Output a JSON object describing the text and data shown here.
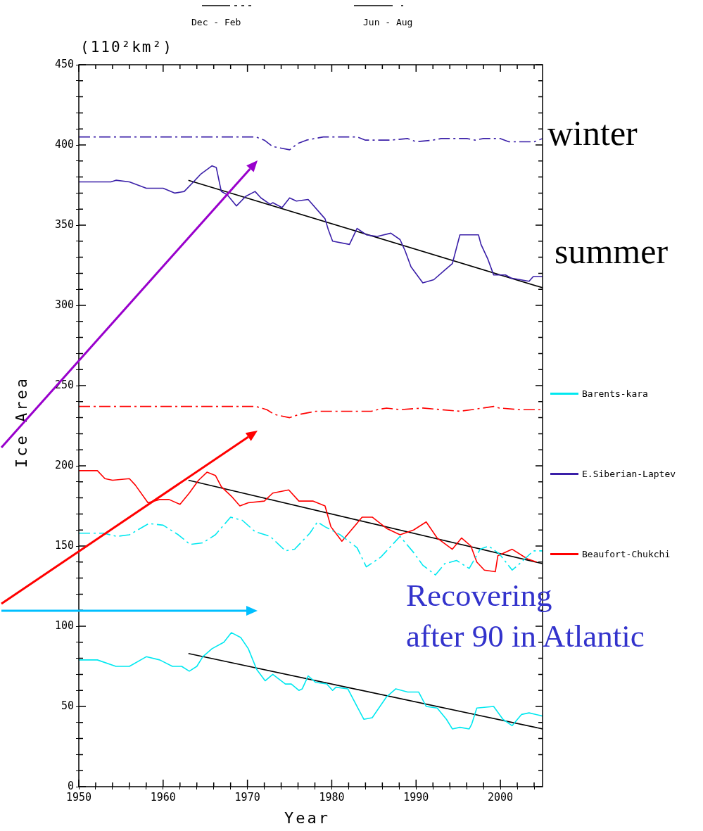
{
  "chart_data": {
    "type": "line",
    "xlabel": "Year",
    "ylabel": "Ice Area",
    "xlim": [
      1950,
      2005
    ],
    "xticks": [
      1950,
      {
        "value": 1952,
        "label": null
      },
      {
        "value": 1954,
        "label": null
      },
      {
        "value": 1956,
        "label": null
      },
      {
        "value": 1958,
        "label": null
      },
      1960,
      {
        "value": 1962,
        "label": null
      },
      {
        "value": 1964,
        "label": null
      },
      {
        "value": 1966,
        "label": null
      },
      {
        "value": 1968,
        "label": null
      },
      1970,
      {
        "value": 1972,
        "label": null
      },
      {
        "value": 1974,
        "label": null
      },
      {
        "value": 1976,
        "label": null
      },
      {
        "value": 1978,
        "label": null
      },
      1980,
      {
        "value": 1982,
        "label": null
      },
      {
        "value": 1984,
        "label": null
      },
      {
        "value": 1986,
        "label": null
      },
      {
        "value": 1988,
        "label": null
      },
      1990,
      {
        "value": 1992,
        "label": null
      },
      {
        "value": 1994,
        "label": null
      },
      {
        "value": 1996,
        "label": null
      },
      {
        "value": 1998,
        "label": null
      },
      2000,
      {
        "value": 2002,
        "label": null
      },
      {
        "value": 2004,
        "label": null
      }
    ],
    "ylim": [
      0,
      450
    ],
    "yticks": [
      0,
      {
        "value": 10,
        "label": null
      },
      {
        "value": 20,
        "label": null
      },
      {
        "value": 30,
        "label": null
      },
      {
        "value": 40,
        "label": null
      },
      50,
      {
        "value": 60,
        "label": null
      },
      {
        "value": 70,
        "label": null
      },
      {
        "value": 80,
        "label": null
      },
      {
        "value": 90,
        "label": null
      },
      100,
      {
        "value": 110,
        "label": null
      },
      {
        "value": 120,
        "label": null
      },
      {
        "value": 130,
        "label": null
      },
      {
        "value": 140,
        "label": null
      },
      150,
      {
        "value": 160,
        "label": null
      },
      {
        "value": 170,
        "label": null
      },
      {
        "value": 180,
        "label": null
      },
      {
        "value": 190,
        "label": null
      },
      200,
      {
        "value": 210,
        "label": null
      },
      {
        "value": 220,
        "label": null
      },
      {
        "value": 230,
        "label": null
      },
      {
        "value": 240,
        "label": null
      },
      250,
      {
        "value": 260,
        "label": null
      },
      {
        "value": 270,
        "label": null
      },
      {
        "value": 280,
        "label": null
      },
      {
        "value": 290,
        "label": null
      },
      300,
      {
        "value": 310,
        "label": null
      },
      {
        "value": 320,
        "label": null
      },
      {
        "value": 330,
        "label": null
      },
      {
        "value": 340,
        "label": null
      },
      350,
      {
        "value": 360,
        "label": null
      },
      {
        "value": 370,
        "label": null
      },
      {
        "value": 380,
        "label": null
      },
      {
        "value": 390,
        "label": null
      },
      400,
      {
        "value": 410,
        "label": null
      },
      {
        "value": 420,
        "label": null
      },
      {
        "value": 430,
        "label": null
      },
      {
        "value": 440,
        "label": null
      },
      450
    ],
    "grid": false,
    "legend": "right",
    "marker": "none",
    "series": [
      {
        "type": "line",
        "line_style": "dashed",
        "color": "#3a1fa8",
        "x": [
          1950,
          1971,
          1972,
          1973,
          1975,
          1976,
          1977,
          1979,
          1983,
          1984,
          1987,
          1989,
          1990,
          1992,
          1993,
          1996,
          1997,
          1998,
          2000,
          2001,
          2004,
          2005
        ],
        "values": [
          405,
          405,
          403,
          399,
          397,
          401,
          403,
          405,
          405,
          403,
          403,
          404,
          402,
          403,
          404,
          404,
          403,
          404,
          404,
          402,
          402,
          404
        ]
      },
      {
        "type": "line",
        "line_style": "dashed",
        "color": "#ff0000",
        "x": [
          1950,
          1971,
          1972.3,
          1973.2,
          1975,
          1976.1,
          1978.1,
          1984.7,
          1985.4,
          1986.5,
          1988.1,
          1990.8,
          1993,
          1995.2,
          1996.6,
          1999.2,
          1999.9,
          2002.3,
          2005
        ],
        "values": [
          237,
          237,
          235,
          232,
          230,
          232,
          234,
          234,
          235,
          236,
          235,
          236,
          235,
          234,
          235,
          237,
          236,
          235,
          235
        ]
      },
      {
        "type": "line",
        "line_style": "dashed",
        "color": "#00e8f0",
        "x": [
          1950,
          1952.9,
          1954.5,
          1956,
          1958.3,
          1960,
          1961.8,
          1963.2,
          1964.7,
          1966.2,
          1968,
          1969.4,
          1970.9,
          1972.7,
          1974.5,
          1975.6,
          1977.4,
          1978.3,
          1979.2,
          1981,
          1983,
          1984.1,
          1985.8,
          1988.1,
          1989.7,
          1990.8,
          1992.3,
          1993.4,
          1994.8,
          1996.3,
          1997.6,
          1998.6,
          1999.9,
          2001.4,
          2002.5,
          2003.9,
          2005
        ],
        "values": [
          158,
          158,
          156,
          157,
          164,
          163,
          157,
          151,
          152,
          157,
          168,
          166,
          159,
          156,
          147,
          148,
          158,
          165,
          162,
          157,
          149,
          137,
          143,
          156,
          146,
          138,
          132,
          139,
          141,
          136,
          148,
          150,
          145,
          135,
          140,
          147,
          147
        ]
      },
      {
        "type": "line",
        "name": "Barents-kara",
        "line_style": "solid",
        "color": "#00e8f0",
        "x": [
          1950,
          1952.2,
          1954.4,
          1956,
          1958,
          1959.6,
          1961.1,
          1962.2,
          1963.1,
          1964,
          1964.7,
          1965.8,
          1967.2,
          1968.1,
          1969.2,
          1970.1,
          1971.1,
          1972.1,
          1973,
          1974.5,
          1975.2,
          1976.1,
          1976.5,
          1977.2,
          1978.1,
          1979.4,
          1980.1,
          1980.5,
          1981.9,
          1983.8,
          1984.8,
          1986.5,
          1987.6,
          1989,
          1990.3,
          1991.2,
          1992.5,
          1993.6,
          1994.3,
          1995.2,
          1996.3,
          1996.6,
          1997.2,
          1999.2,
          2000.3,
          2001.4,
          2002.5,
          2003.4,
          2005
        ],
        "values": [
          79,
          79,
          75,
          75,
          81,
          79,
          75,
          75,
          72,
          75,
          81,
          86,
          90,
          96,
          93,
          86,
          73,
          66,
          70,
          64,
          64,
          60,
          61,
          69,
          65,
          64,
          60,
          62,
          61,
          42,
          43,
          56,
          61,
          59,
          59,
          50,
          49,
          42,
          36,
          37,
          36,
          39,
          49,
          50,
          42,
          38,
          45,
          46,
          44
        ]
      },
      {
        "type": "line",
        "name": "E.Siberian-Laptev",
        "line_style": "solid",
        "color": "#3a1fa8",
        "x": [
          1950,
          1953.8,
          1954.4,
          1956,
          1958,
          1960,
          1961.4,
          1962.5,
          1963.6,
          1964.5,
          1965.8,
          1966.3,
          1966.9,
          1967.6,
          1968.7,
          1969.8,
          1970.9,
          1971.6,
          1972.7,
          1973,
          1974.1,
          1975,
          1975.8,
          1977.2,
          1979.2,
          1979.6,
          1980.1,
          1982.1,
          1983,
          1984.1,
          1985.4,
          1987,
          1988.1,
          1988.7,
          1989.4,
          1990.8,
          1992.1,
          1993.4,
          1994.3,
          1995.2,
          1997.4,
          1997.7,
          1998.5,
          1999.2,
          2000.6,
          2001.3,
          2003.4,
          2003.9,
          2005
        ],
        "values": [
          377,
          377,
          378,
          377,
          373,
          373,
          370,
          371,
          377,
          382,
          387,
          386,
          371,
          369,
          362,
          368,
          371,
          367,
          363,
          364,
          361,
          367,
          365,
          366,
          354,
          347,
          340,
          338,
          348,
          344,
          343,
          345,
          341,
          334,
          324,
          314,
          316,
          322,
          326,
          344,
          344,
          338,
          329,
          319,
          319,
          317,
          315,
          318,
          318
        ]
      },
      {
        "type": "line",
        "name": "Beaufort-Chukchi",
        "line_style": "solid",
        "color": "#ff0000",
        "x": [
          1950,
          1952.2,
          1953.1,
          1954,
          1956,
          1956.7,
          1958.2,
          1959.6,
          1960.7,
          1962,
          1963.1,
          1964.2,
          1965.2,
          1966.2,
          1966.9,
          1968.1,
          1969.1,
          1970.1,
          1972,
          1973,
          1974.9,
          1976.1,
          1977.8,
          1979.2,
          1979.9,
          1981.2,
          1983.6,
          1984.8,
          1986.5,
          1988.1,
          1989.7,
          1991.2,
          1992.5,
          1994.3,
          1995.4,
          1996.5,
          1997.2,
          1998.1,
          1999.4,
          1999.7,
          2001.4,
          2003.2,
          2004.3
        ],
        "values": [
          197,
          197,
          192,
          191,
          192,
          188,
          177,
          179,
          179,
          176,
          183,
          191,
          196,
          194,
          187,
          181,
          175,
          177,
          178,
          183,
          185,
          178,
          178,
          175,
          162,
          153,
          168,
          168,
          161,
          157,
          160,
          165,
          155,
          148,
          155,
          150,
          140,
          135,
          134,
          144,
          148,
          142,
          140
        ]
      },
      {
        "type": "line",
        "line_style": "solid",
        "color": "#000000",
        "x": [
          1963,
          2005
        ],
        "values": [
          378,
          311
        ]
      },
      {
        "type": "line",
        "line_style": "solid",
        "color": "#000000",
        "x": [
          1963,
          2005
        ],
        "values": [
          191,
          139
        ]
      },
      {
        "type": "line",
        "line_style": "solid",
        "color": "#000000",
        "x": [
          1963,
          2005
        ],
        "values": [
          83,
          36
        ]
      }
    ],
    "annotations": [
      "(110²km²)",
      "Dec - Feb",
      "Jun - Aug",
      "winter",
      "summer",
      "Recovering\nafter 90 in Atlantic"
    ]
  }
}
